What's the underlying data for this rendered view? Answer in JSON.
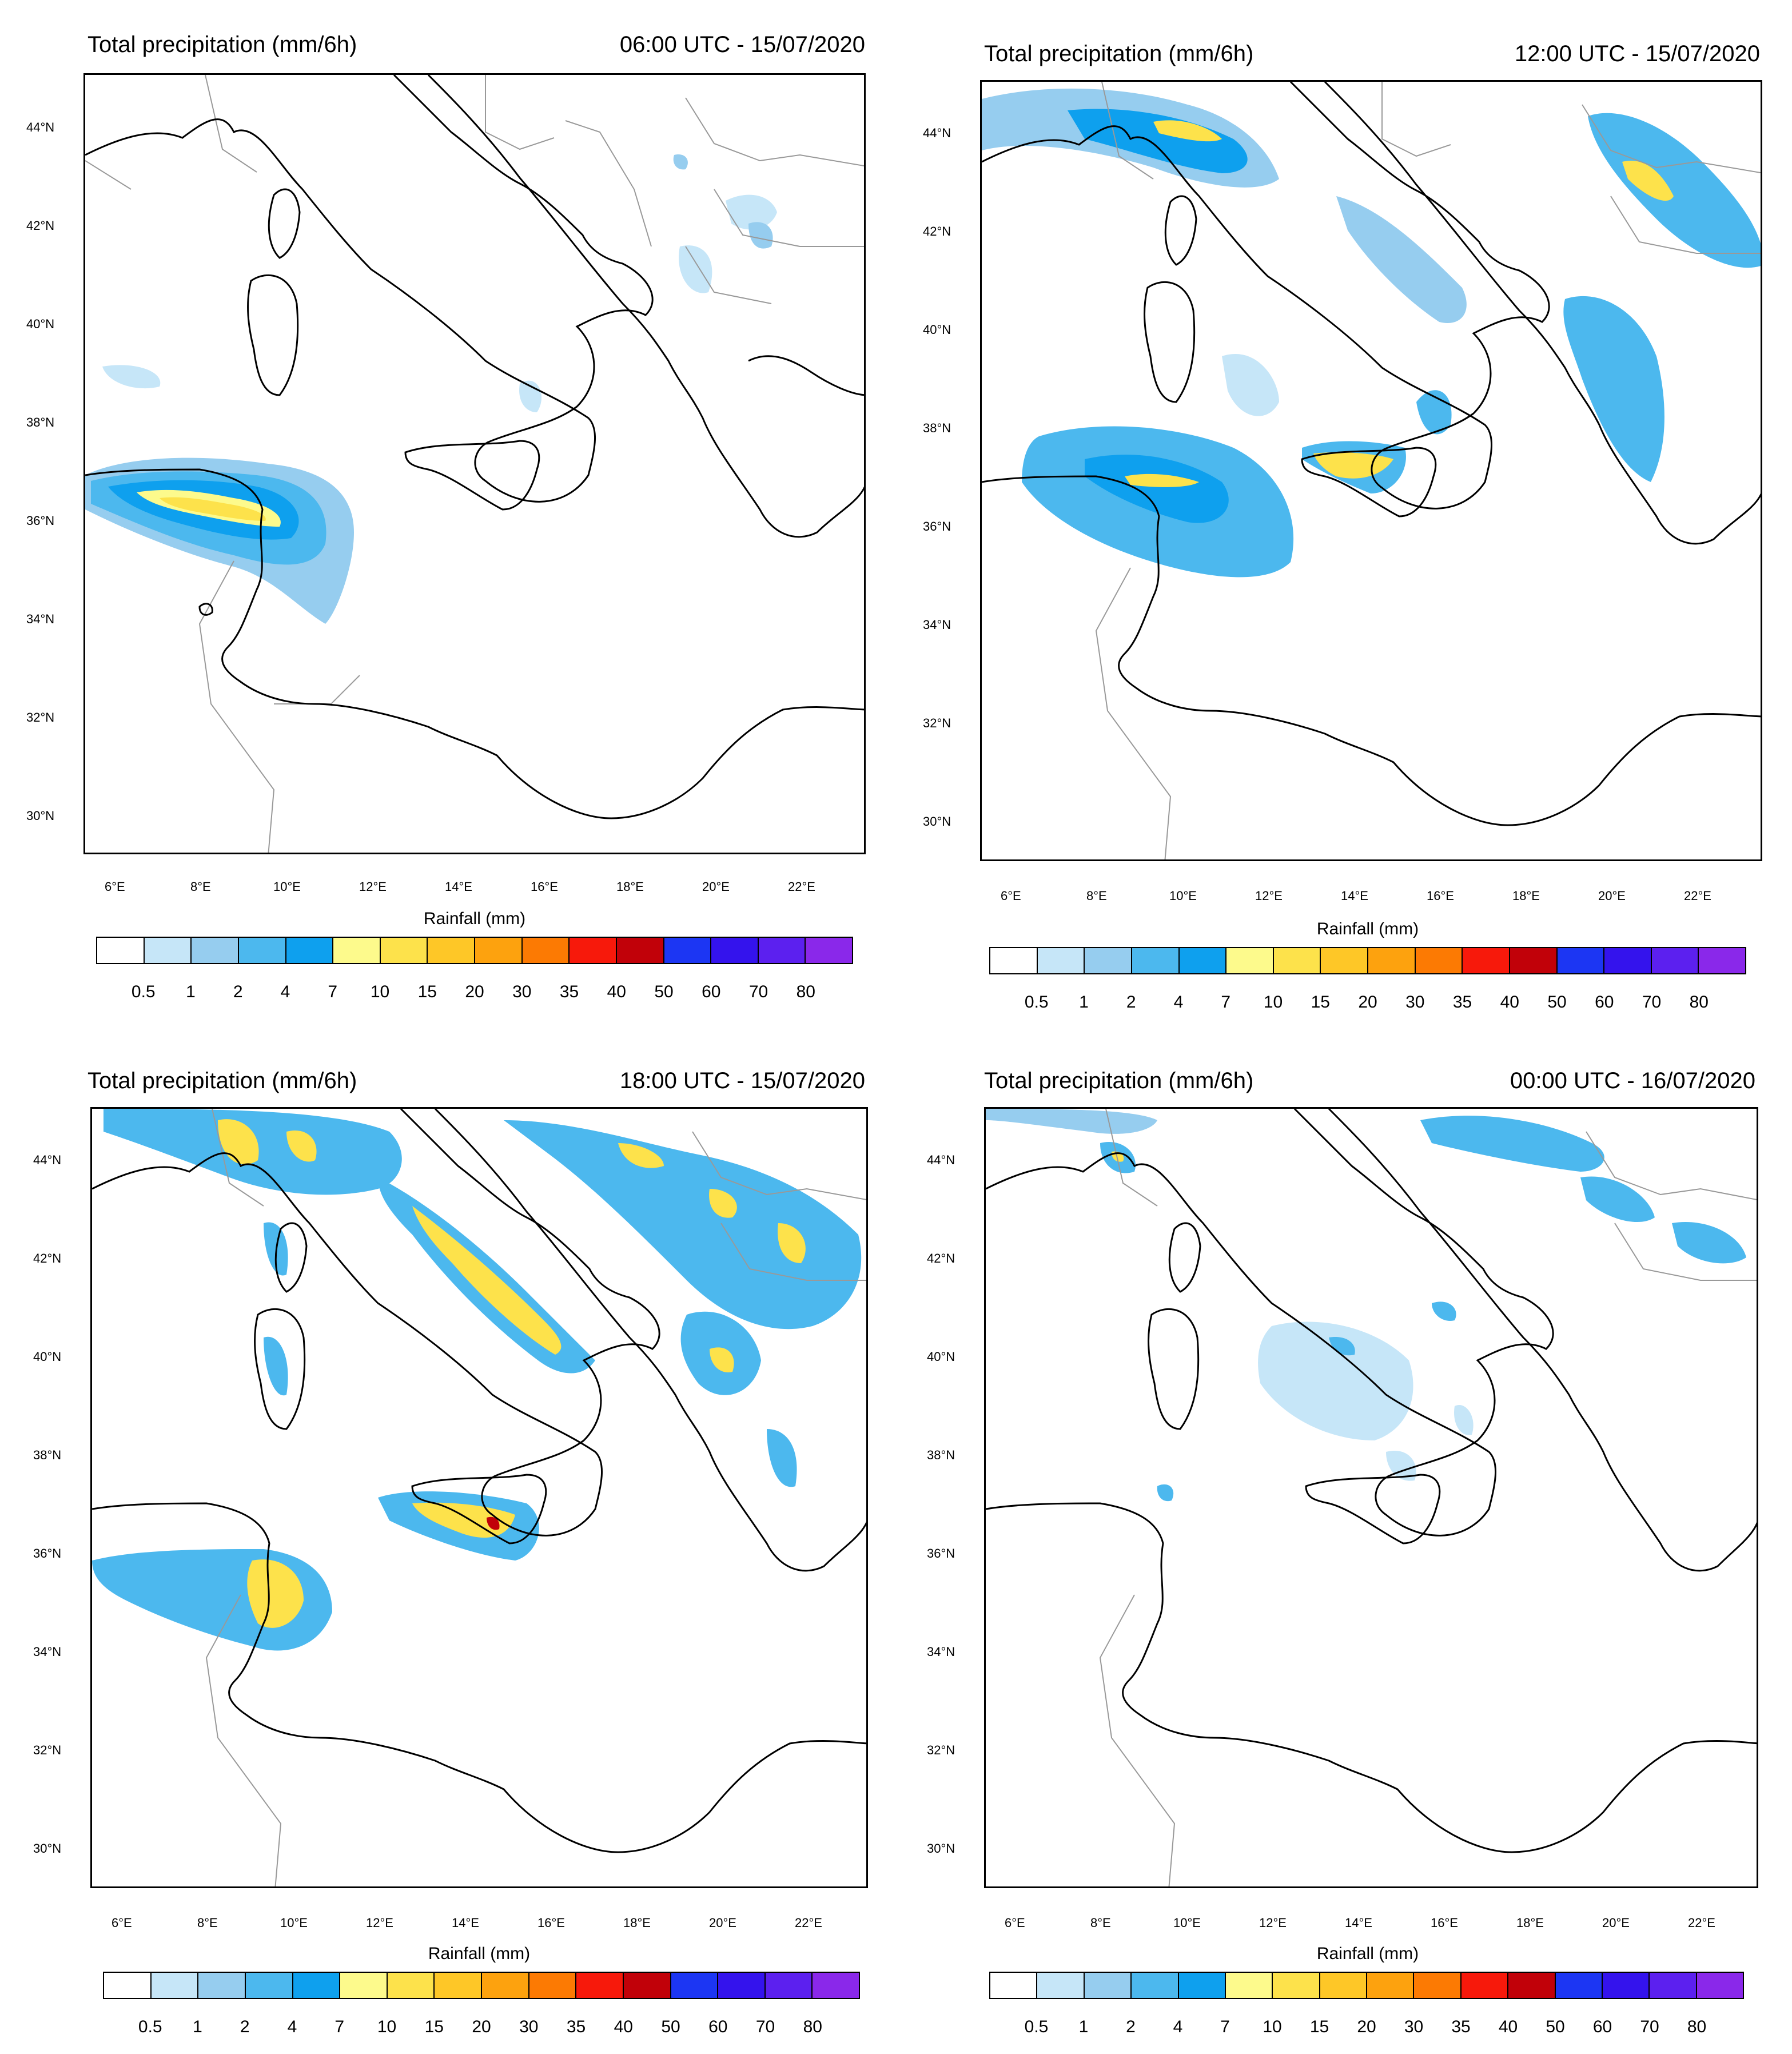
{
  "colorbar": {
    "label": "Rainfall  (mm)",
    "values": [
      "0.5",
      "1",
      "2",
      "4",
      "7",
      "10",
      "15",
      "20",
      "30",
      "35",
      "40",
      "50",
      "60",
      "70",
      "80"
    ],
    "colors": [
      "#ffffff",
      "#c6e6f8",
      "#96cdef",
      "#4cb8ee",
      "#0ea0ee",
      "#fdfa8c",
      "#fde24b",
      "#fec727",
      "#fda20e",
      "#fc7a03",
      "#f7190b",
      "#c10109",
      "#1c36f3",
      "#3413ed",
      "#5c20ef",
      "#8a28ea"
    ]
  },
  "axes": {
    "lon_labels": [
      "6°E",
      "8°E",
      "10°E",
      "12°E",
      "14°E",
      "16°E",
      "18°E",
      "20°E",
      "22°E"
    ],
    "lat_labels": [
      "44°N",
      "42°N",
      "40°N",
      "38°N",
      "36°N",
      "34°N",
      "32°N",
      "30°N"
    ]
  },
  "panels": [
    {
      "title": "Total precipitation (mm/6h)",
      "time": "06:00 UTC - 15/07/2020"
    },
    {
      "title": "Total precipitation (mm/6h)",
      "time": "12:00 UTC - 15/07/2020"
    },
    {
      "title": "Total precipitation (mm/6h)",
      "time": "18:00 UTC - 15/07/2020"
    },
    {
      "title": "Total precipitation (mm/6h)",
      "time": "00:00 UTC - 16/07/2020"
    }
  ]
}
